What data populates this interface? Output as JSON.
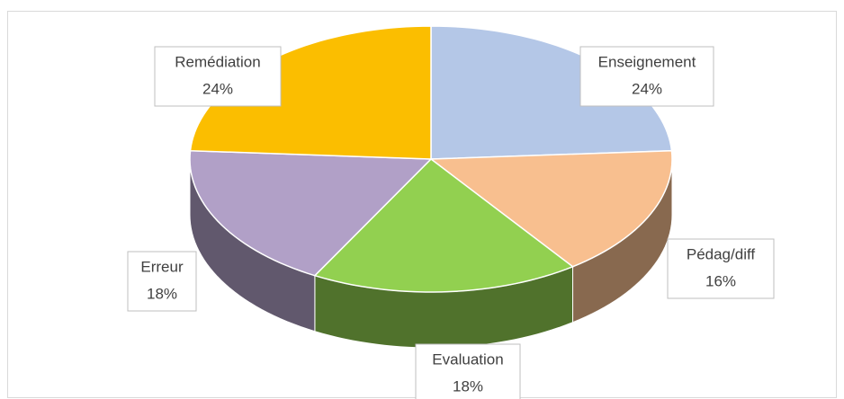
{
  "chart_data": {
    "type": "pie",
    "categories": [
      "Enseignement",
      "Pédag/diff",
      "Evaluation",
      "Erreur",
      "Remédiation"
    ],
    "values": [
      24,
      16,
      18,
      18,
      24
    ],
    "value_labels": [
      "24%",
      "16%",
      "18%",
      "18%",
      "24%"
    ],
    "colors": [
      "#b4c7e7",
      "#f8bf8f",
      "#92d050",
      "#b1a0c7",
      "#fbbe00"
    ]
  }
}
